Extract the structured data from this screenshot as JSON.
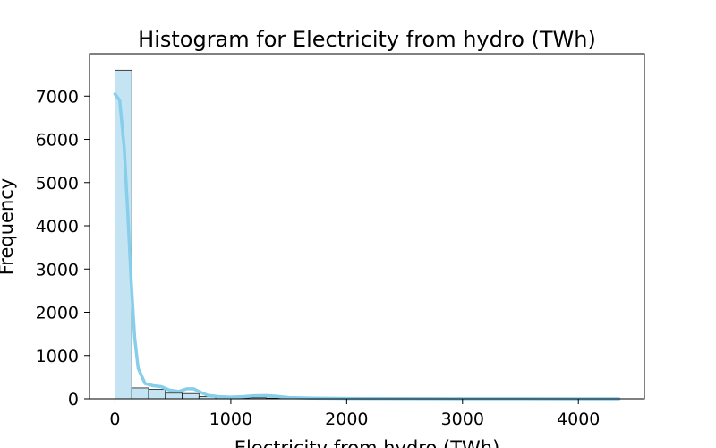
{
  "chart_data": {
    "type": "bar",
    "title": "Histogram for Electricity from hydro (TWh)",
    "xlabel": "Electricity from hydro (TWh)",
    "ylabel": "Frequency",
    "xlim": [
      -220,
      4570
    ],
    "ylim": [
      0,
      7980
    ],
    "xticks": [
      0,
      1000,
      2000,
      3000,
      4000
    ],
    "yticks": [
      0,
      1000,
      2000,
      3000,
      4000,
      5000,
      6000,
      7000
    ],
    "bin_width": 145,
    "bin_edges_start": 0,
    "values": [
      7600,
      250,
      220,
      130,
      120,
      50,
      40,
      20,
      25,
      15,
      10,
      10,
      8,
      6,
      5,
      5,
      4,
      4,
      3,
      3,
      3,
      2,
      2,
      2,
      2,
      2,
      1,
      1,
      1,
      1
    ],
    "kde": {
      "x": [
        0,
        40,
        80,
        110,
        140,
        170,
        200,
        260,
        330,
        400,
        470,
        550,
        620,
        680,
        740,
        800,
        900,
        1000,
        1100,
        1200,
        1300,
        1400,
        1500,
        1700,
        2000,
        2500,
        3000,
        3500,
        4000,
        4350
      ],
      "y": [
        7050,
        6900,
        5800,
        4300,
        2700,
        1400,
        700,
        350,
        300,
        280,
        200,
        170,
        230,
        230,
        150,
        80,
        50,
        40,
        50,
        70,
        75,
        55,
        30,
        15,
        8,
        5,
        3,
        2,
        1,
        1
      ]
    },
    "grid": false,
    "colors": {
      "bar_fill": "#c4e4f3",
      "bar_edge": "#1a1a1a",
      "kde": "#87ceeb"
    }
  }
}
